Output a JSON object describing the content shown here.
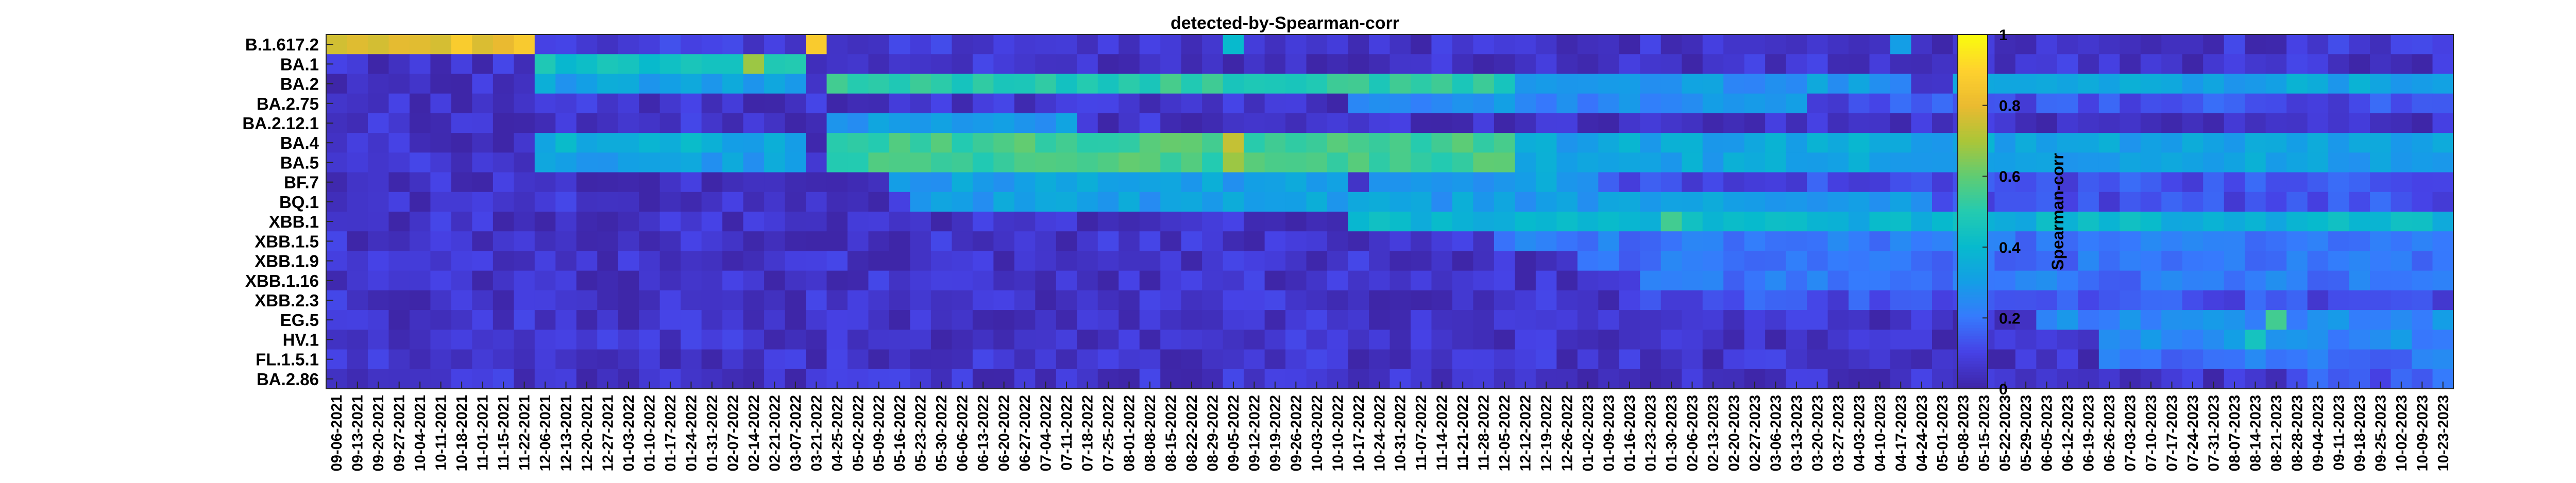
{
  "chart_data": {
    "type": "heatmap",
    "title": "detected-by-Spearman-corr",
    "colorbar_label": "Spearman-corr",
    "colormap": "parula",
    "clim": [
      0,
      1
    ],
    "colorbar_ticks": [
      0,
      0.2,
      0.4,
      0.6,
      0.8,
      1
    ],
    "colorbar_tick_labels": [
      "0",
      "0.2",
      "0.4",
      "0.6",
      "0.8",
      "1"
    ],
    "rows": [
      "B.1.617.2",
      "BA.1",
      "BA.2",
      "BA.2.75",
      "BA.2.12.1",
      "BA.4",
      "BA.5",
      "BF.7",
      "BQ.1",
      "XBB.1",
      "XBB.1.5",
      "XBB.1.9",
      "XBB.1.16",
      "XBB.2.3",
      "EG.5",
      "HV.1",
      "FL.1.5.1",
      "BA.2.86"
    ],
    "columns": [
      "09-06-2021",
      "09-13-2021",
      "09-20-2021",
      "09-27-2021",
      "10-04-2021",
      "10-11-2021",
      "10-18-2021",
      "11-01-2021",
      "11-15-2021",
      "11-22-2021",
      "12-06-2021",
      "12-13-2021",
      "12-20-2021",
      "12-27-2021",
      "01-03-2022",
      "01-10-2022",
      "01-17-2022",
      "01-24-2022",
      "01-31-2022",
      "02-07-2022",
      "02-14-2022",
      "02-21-2022",
      "03-07-2022",
      "03-21-2022",
      "04-25-2022",
      "05-02-2022",
      "05-09-2022",
      "05-16-2022",
      "05-23-2022",
      "05-30-2022",
      "06-06-2022",
      "06-13-2022",
      "06-20-2022",
      "06-27-2022",
      "07-04-2022",
      "07-11-2022",
      "07-18-2022",
      "07-25-2022",
      "08-01-2022",
      "08-08-2022",
      "08-15-2022",
      "08-22-2022",
      "08-29-2022",
      "09-05-2022",
      "09-12-2022",
      "09-19-2022",
      "09-26-2022",
      "10-03-2022",
      "10-10-2022",
      "10-17-2022",
      "10-24-2022",
      "10-31-2022",
      "11-07-2022",
      "11-14-2022",
      "11-21-2022",
      "11-28-2022",
      "12-05-2022",
      "12-12-2022",
      "12-19-2022",
      "12-26-2022",
      "01-02-2023",
      "01-09-2023",
      "01-16-2023",
      "01-23-2023",
      "01-30-2023",
      "02-06-2023",
      "02-13-2023",
      "02-20-2023",
      "02-27-2023",
      "03-06-2023",
      "03-13-2023",
      "03-20-2023",
      "03-27-2023",
      "04-03-2023",
      "04-10-2023",
      "04-17-2023",
      "04-24-2023",
      "05-01-2023",
      "05-08-2023",
      "05-15-2023",
      "05-22-2023",
      "05-29-2023",
      "06-05-2023",
      "06-12-2023",
      "06-19-2023",
      "06-26-2023",
      "07-03-2023",
      "07-10-2023",
      "07-17-2023",
      "07-24-2023",
      "07-31-2023",
      "08-07-2023",
      "08-14-2023",
      "08-21-2023",
      "08-28-2023",
      "09-04-2023",
      "09-11-2023",
      "09-18-2023",
      "09-25-2023",
      "10-02-2023",
      "10-09-2023",
      "10-23-2023"
    ],
    "row_profiles": [
      {
        "row": "B.1.617.2",
        "segments": [
          [
            0,
            9,
            0.82
          ],
          [
            10,
            22,
            0.07
          ],
          [
            23,
            23,
            0.88
          ],
          [
            24,
            101,
            0.06
          ]
        ]
      },
      {
        "row": "BA.1",
        "segments": [
          [
            0,
            9,
            0.05
          ],
          [
            10,
            22,
            0.45
          ],
          [
            23,
            101,
            0.05
          ]
        ]
      },
      {
        "row": "BA.2",
        "segments": [
          [
            0,
            9,
            0.05
          ],
          [
            10,
            22,
            0.3
          ],
          [
            23,
            23,
            0.02
          ],
          [
            24,
            56,
            0.5
          ],
          [
            57,
            76,
            0.28
          ],
          [
            77,
            77,
            0.1
          ],
          [
            78,
            101,
            0.33
          ]
        ]
      },
      {
        "row": "BA.2.75",
        "segments": [
          [
            0,
            48,
            0.05
          ],
          [
            49,
            70,
            0.25
          ],
          [
            71,
            101,
            0.12
          ]
        ]
      },
      {
        "row": "BA.2.12.1",
        "segments": [
          [
            0,
            23,
            0.05
          ],
          [
            24,
            35,
            0.28
          ],
          [
            36,
            101,
            0.05
          ]
        ]
      },
      {
        "row": "BA.4",
        "segments": [
          [
            0,
            9,
            0.05
          ],
          [
            10,
            22,
            0.35
          ],
          [
            23,
            23,
            0.02
          ],
          [
            24,
            56,
            0.55
          ],
          [
            57,
            101,
            0.33
          ]
        ]
      },
      {
        "row": "BA.5",
        "segments": [
          [
            0,
            9,
            0.05
          ],
          [
            10,
            22,
            0.3
          ],
          [
            23,
            23,
            0.02
          ],
          [
            24,
            56,
            0.55
          ],
          [
            57,
            101,
            0.32
          ]
        ]
      },
      {
        "row": "BF.7",
        "segments": [
          [
            0,
            26,
            0.05
          ],
          [
            27,
            60,
            0.3
          ],
          [
            61,
            101,
            0.12
          ]
        ]
      },
      {
        "row": "BQ.1",
        "segments": [
          [
            0,
            27,
            0.05
          ],
          [
            28,
            76,
            0.3
          ],
          [
            77,
            101,
            0.12
          ]
        ]
      },
      {
        "row": "XBB.1",
        "segments": [
          [
            0,
            48,
            0.05
          ],
          [
            49,
            76,
            0.38
          ],
          [
            77,
            101,
            0.38
          ]
        ]
      },
      {
        "row": "XBB.1.5",
        "segments": [
          [
            0,
            55,
            0.05
          ],
          [
            56,
            101,
            0.2
          ]
        ]
      },
      {
        "row": "XBB.1.9",
        "segments": [
          [
            0,
            59,
            0.05
          ],
          [
            60,
            101,
            0.18
          ]
        ]
      },
      {
        "row": "XBB.1.16",
        "segments": [
          [
            0,
            62,
            0.05
          ],
          [
            63,
            101,
            0.2
          ]
        ]
      },
      {
        "row": "XBB.2.3",
        "segments": [
          [
            0,
            62,
            0.05
          ],
          [
            63,
            101,
            0.12
          ]
        ]
      },
      {
        "row": "EG.5",
        "segments": [
          [
            0,
            81,
            0.05
          ],
          [
            82,
            101,
            0.25
          ]
        ]
      },
      {
        "row": "HV.1",
        "segments": [
          [
            0,
            84,
            0.05
          ],
          [
            85,
            101,
            0.25
          ]
        ]
      },
      {
        "row": "FL.1.5.1",
        "segments": [
          [
            0,
            84,
            0.05
          ],
          [
            85,
            101,
            0.2
          ]
        ]
      },
      {
        "row": "BA.2.86",
        "segments": [
          [
            0,
            93,
            0.05
          ],
          [
            94,
            101,
            0.15
          ]
        ]
      }
    ],
    "highlights": [
      {
        "row": "BA.1",
        "col": 20,
        "value": 0.68
      },
      {
        "row": "BA.4",
        "col": 43,
        "value": 0.74
      },
      {
        "row": "BA.5",
        "col": 43,
        "value": 0.68
      },
      {
        "row": "BA.5",
        "col": 55,
        "value": 0.6
      },
      {
        "row": "XBB.1",
        "col": 64,
        "value": 0.55
      },
      {
        "row": "BF.7",
        "col": 49,
        "value": 0.05
      },
      {
        "row": "BA.2",
        "col": 76,
        "value": 0.05
      },
      {
        "row": "EG.5",
        "col": 93,
        "value": 0.55
      },
      {
        "row": "HV.1",
        "col": 92,
        "value": 0.45
      },
      {
        "row": "B.1.617.2",
        "col": 43,
        "value": 0.4
      },
      {
        "row": "B.1.617.2",
        "col": 75,
        "value": 0.3
      }
    ]
  }
}
